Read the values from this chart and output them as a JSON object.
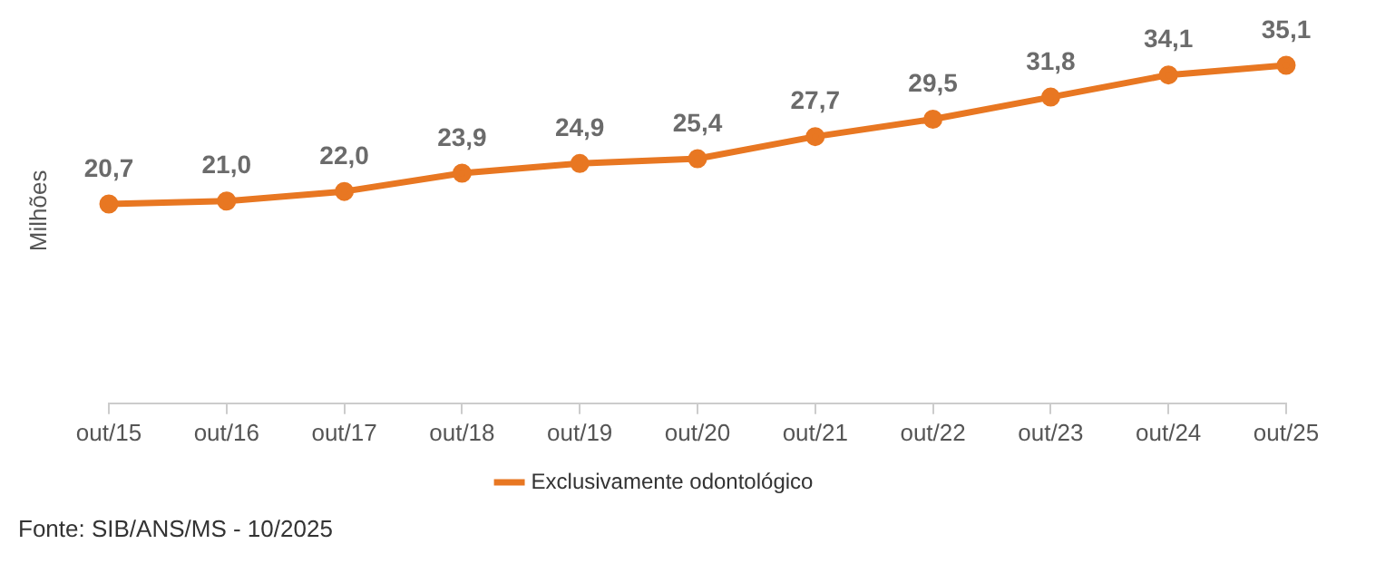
{
  "chart_data": {
    "type": "line",
    "ylabel": "Milhões",
    "categories": [
      "out/15",
      "out/16",
      "out/17",
      "out/18",
      "out/19",
      "out/20",
      "out/21",
      "out/22",
      "out/23",
      "out/24",
      "out/25"
    ],
    "series": [
      {
        "name": "Exclusivamente odontológico",
        "color": "#e87722",
        "values": [
          20.7,
          21.0,
          22.0,
          23.9,
          24.9,
          25.4,
          27.7,
          29.5,
          31.8,
          34.1,
          35.1
        ],
        "value_labels": [
          "20,7",
          "21,0",
          "22,0",
          "23,9",
          "24,9",
          "25,4",
          "27,7",
          "29,5",
          "31,8",
          "34,1",
          "35,1"
        ]
      }
    ],
    "tick_labels": "x",
    "legend": "bottom",
    "marker": "circle",
    "line_style": "solid",
    "annotations": [
      "Fonte: SIB/ANS/MS - 10/2025"
    ]
  }
}
